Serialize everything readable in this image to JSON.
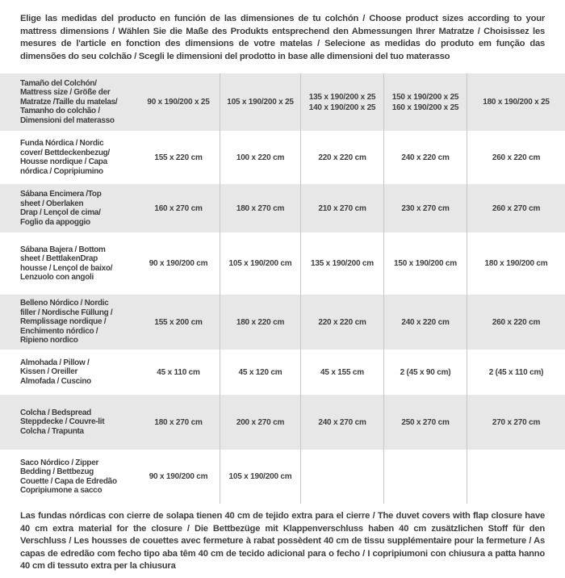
{
  "header": {
    "text": "Elige las medidas del producto en función de las dimensiones de tu colchón / Choose product sizes according to your mattress dimensions / Wählen Sie die Maße des Produkts entsprechend den Abmessungen Ihrer Matratze / Choisissez les mesures de l'article en fonction des dimensions de votre matelas / Selecione as medidas do produto em função das dimensões do seu colchão / Scegli le dimensioni del prodotto in base alle dimensioni del tuo materasso"
  },
  "footer": {
    "text": "Las fundas nórdicas con cierre de solapa tienen 40 cm de tejido extra para el cierre  / The duvet covers with flap closure have 40 cm extra material for the closure / Die Bettbezüge mit Klappenverschluss haben 40 cm zusätzlichen Stoff für den Verschluss / Les housses de couettes avec fermeture à rabat possèdent 40 cm de tissu supplémentaire pour la fermeture / As capas de edredão com fecho tipo aba têm 40 cm de tecido adicional para o fecho / I copripiumoni con chiusura a patta hanno 40 cm di tessuto extra per la chiusura"
  },
  "table": {
    "rows": [
      {
        "label": "Tamaño del Colchón/\nMattress size / Größe der\nMatratze /Taille du matelas/\nTamanho do colchão /\nDimensioni del materasso",
        "values": [
          "90 x 190/200 x 25",
          "105 x 190/200 x 25",
          "135 x 190/200 x 25\n140 x 190/200 x 25",
          "150 x 190/200 x 25\n160 x 190/200 x 25",
          "180 x 190/200 x 25"
        ]
      },
      {
        "label": "Funda Nórdica /  Nordic\ncover/ Bettdeckenbezug/\nHousse nordique / Capa\nnórdica / Copripiumino",
        "values": [
          "155 x 220 cm",
          "100 x 220 cm",
          "220 x 220 cm",
          "240 x 220 cm",
          "260 x 220 cm"
        ]
      },
      {
        "label": "Sábana Encimera /Top\nsheet / Oberlaken\nDrap / Lençol de cima/\nFoglio da appoggio",
        "values": [
          "160 x 270 cm",
          "180 x 270 cm",
          "210 x 270 cm",
          "230 x 270 cm",
          "260 x 270 cm"
        ]
      },
      {
        "label": "Sábana Bajera / Bottom\nsheet / BettlakenDrap\nhousse / Lençol de baixo/\nLenzuolo con angoli",
        "values": [
          "90 x 190/200 cm",
          "105 x 190/200 cm",
          "135 x 190/200 cm",
          "150 x 190/200 cm",
          "180 x 190/200 cm"
        ]
      },
      {
        "label": "Belleno Nórdico / Nordic\nfiller / Nordische Füllung /\nRemplissage nordique /\nEnchimento nórdico /\nRipieno nordico",
        "values": [
          "155 x 200 cm",
          "180 x 220 cm",
          "220 x 220 cm",
          "240 x 220 cm",
          "260 x 220 cm"
        ]
      },
      {
        "label": "Almohada  / Pillow /\nKissen / Oreiller\nAlmofada / Cuscino",
        "values": [
          "45 x 110 cm",
          "45 x 120 cm",
          "45 x 155 cm",
          "2 (45 x 90 cm)",
          "2 (45 x 110 cm)"
        ]
      },
      {
        "label": "Colcha / Bedspread\nSteppdecke / Couvre-lit\nColcha / Trapunta",
        "values": [
          "180 x 270 cm",
          "200 x 270 cm",
          "240 x 270 cm",
          "250 x 270 cm",
          "270 x 270 cm"
        ]
      },
      {
        "label": "Saco Nórdico / Zipper\nBedding / Bettbezug\nCouette  / Capa de Edredão\nCopripiumone a sacco",
        "values": [
          "90 x 190/200 cm",
          "105 x 190/200 cm",
          "",
          "",
          ""
        ]
      }
    ]
  },
  "colors": {
    "row_alternate": "#e7e7e8",
    "row_white": "#ffffff",
    "text": "#3e3e3e",
    "divider": "#c6c7c8",
    "background": "#ffffff"
  }
}
